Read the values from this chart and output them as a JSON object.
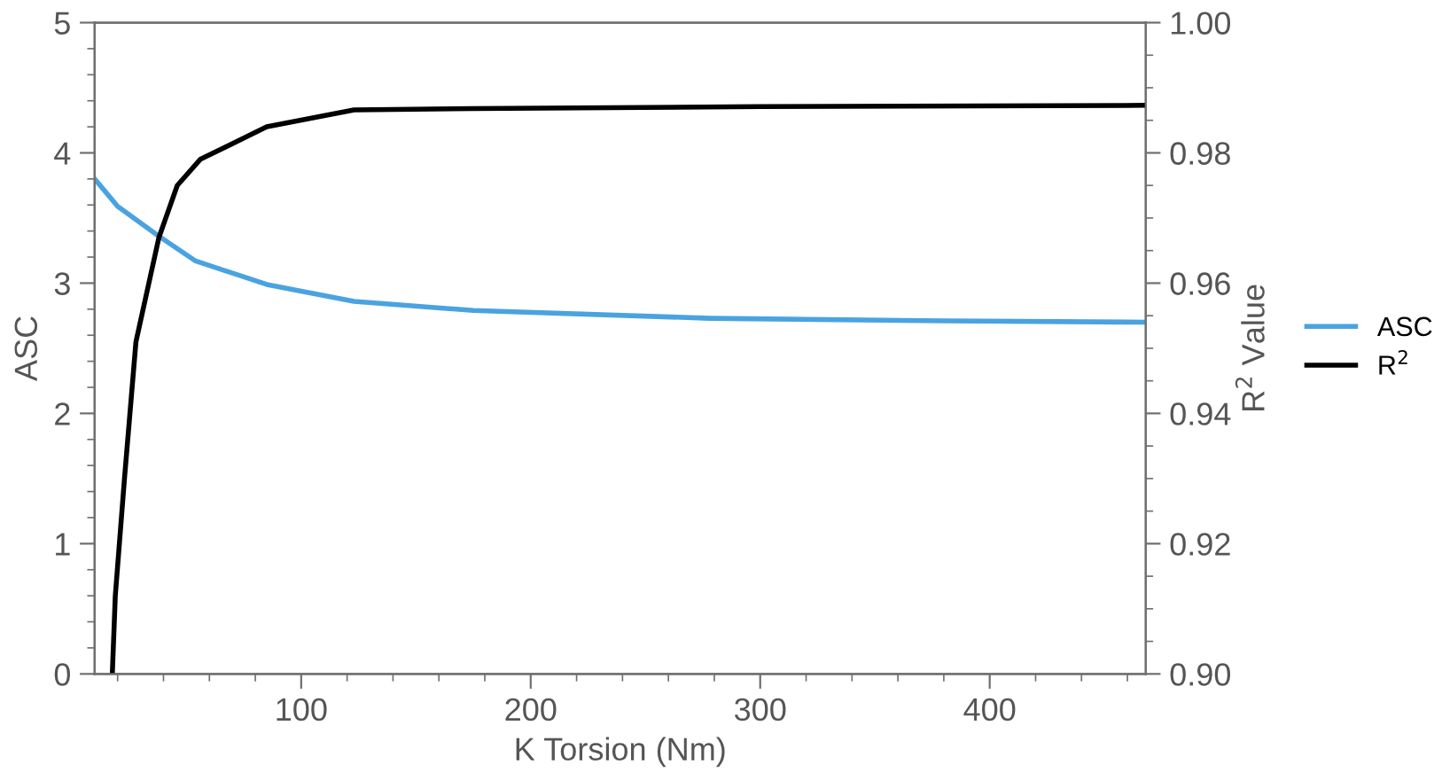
{
  "chart_data": {
    "type": "line",
    "xlabel": "K Torsion (Nm)",
    "ylabel": "ASC",
    "y2label": "R$^{2}$ Value",
    "xlim": [
      10,
      468
    ],
    "ylim": [
      0,
      5
    ],
    "y2lim": [
      0.9,
      1.0
    ],
    "xticks": [
      {
        "value": 20,
        "label": null
      },
      {
        "value": 40,
        "label": null
      },
      {
        "value": 60,
        "label": null
      },
      {
        "value": 80,
        "label": null
      },
      100,
      {
        "value": 120,
        "label": null
      },
      {
        "value": 140,
        "label": null
      },
      {
        "value": 160,
        "label": null
      },
      {
        "value": 180,
        "label": null
      },
      200,
      {
        "value": 220,
        "label": null
      },
      {
        "value": 240,
        "label": null
      },
      {
        "value": 260,
        "label": null
      },
      {
        "value": 280,
        "label": null
      },
      300,
      {
        "value": 320,
        "label": null
      },
      {
        "value": 340,
        "label": null
      },
      {
        "value": 360,
        "label": null
      },
      {
        "value": 380,
        "label": null
      },
      400,
      {
        "value": 420,
        "label": null
      },
      {
        "value": 440,
        "label": null
      },
      {
        "value": 460,
        "label": null
      }
    ],
    "yticks": [
      0,
      {
        "value": 0.2,
        "label": null
      },
      {
        "value": 0.4,
        "label": null
      },
      {
        "value": 0.6,
        "label": null
      },
      {
        "value": 0.8,
        "label": null
      },
      1,
      {
        "value": 1.2,
        "label": null
      },
      {
        "value": 1.4,
        "label": null
      },
      {
        "value": 1.6,
        "label": null
      },
      {
        "value": 1.8,
        "label": null
      },
      2,
      {
        "value": 2.2,
        "label": null
      },
      {
        "value": 2.4,
        "label": null
      },
      {
        "value": 2.6,
        "label": null
      },
      {
        "value": 2.8,
        "label": null
      },
      3,
      {
        "value": 3.2,
        "label": null
      },
      {
        "value": 3.4,
        "label": null
      },
      {
        "value": 3.6,
        "label": null
      },
      {
        "value": 3.8,
        "label": null
      },
      4,
      {
        "value": 4.2,
        "label": null
      },
      {
        "value": 4.4,
        "label": null
      },
      {
        "value": 4.6,
        "label": null
      },
      {
        "value": 4.8,
        "label": null
      },
      5
    ],
    "y2ticks": [
      {
        "value": 0.9,
        "label": "0.90"
      },
      {
        "value": 0.905,
        "label": null
      },
      {
        "value": 0.91,
        "label": null
      },
      {
        "value": 0.915,
        "label": null
      },
      {
        "value": 0.92,
        "label": "0.92"
      },
      {
        "value": 0.925,
        "label": null
      },
      {
        "value": 0.93,
        "label": null
      },
      {
        "value": 0.935,
        "label": null
      },
      {
        "value": 0.94,
        "label": "0.94"
      },
      {
        "value": 0.945,
        "label": null
      },
      {
        "value": 0.95,
        "label": null
      },
      {
        "value": 0.955,
        "label": null
      },
      {
        "value": 0.96,
        "label": "0.96"
      },
      {
        "value": 0.965,
        "label": null
      },
      {
        "value": 0.97,
        "label": null
      },
      {
        "value": 0.975,
        "label": null
      },
      {
        "value": 0.98,
        "label": "0.98"
      },
      {
        "value": 0.985,
        "label": null
      },
      {
        "value": 0.99,
        "label": null
      },
      {
        "value": 0.995,
        "label": null
      },
      {
        "value": 1.0,
        "label": "1.00"
      }
    ],
    "legend": "right",
    "grid": false,
    "marker": "none",
    "line_style": "solid",
    "series": [
      {
        "name": "ASC",
        "color": "#4aa3e0",
        "x": [
          10,
          20,
          38,
          54,
          85,
          123,
          175,
          278,
          381,
          468
        ],
        "values": [
          3.8,
          3.59,
          3.36,
          3.17,
          2.99,
          2.86,
          2.79,
          2.73,
          2.71,
          2.7
        ]
      },
      {
        "name": "R$^{2}$",
        "color": "#000000",
        "axis": "y2",
        "x": [
          17.7,
          19,
          23,
          28,
          38,
          46,
          56,
          85,
          123,
          175,
          300,
          468
        ],
        "values": [
          0.9,
          0.912,
          0.93,
          0.951,
          0.967,
          0.975,
          0.979,
          0.984,
          0.9866,
          0.9868,
          0.9871,
          0.9873
        ]
      }
    ]
  }
}
